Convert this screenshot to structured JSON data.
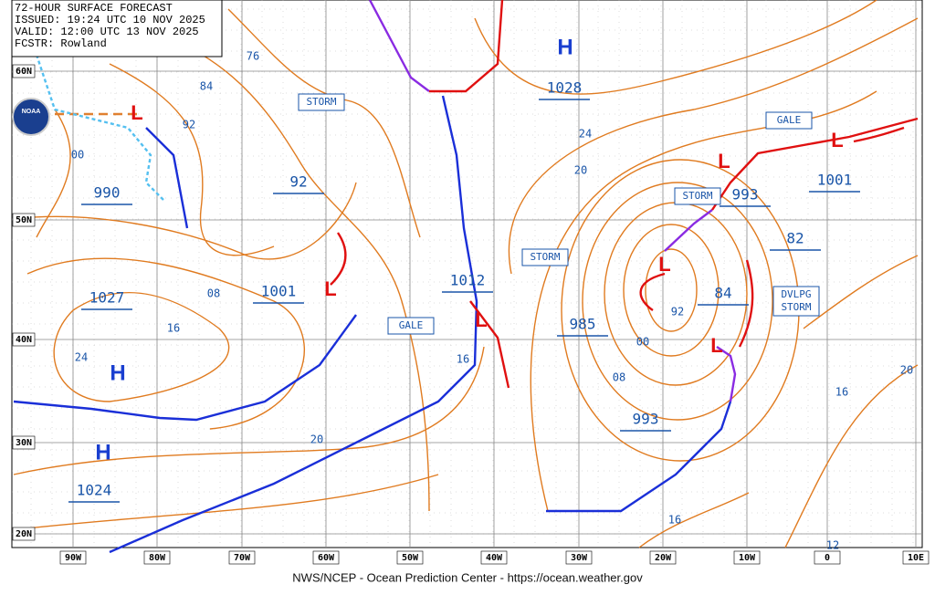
{
  "header": {
    "lines": [
      "72-HOUR SURFACE FORECAST",
      "ISSUED: 19:24 UTC 10 NOV 2025",
      "VALID: 12:00 UTC 13 NOV 2025",
      "FCSTR: Rowland"
    ]
  },
  "logo": "NOAA",
  "latitude_labels": [
    "60N",
    "50N",
    "40N",
    "30N",
    "20N"
  ],
  "longitude_labels": [
    "90W",
    "80W",
    "70W",
    "60W",
    "50W",
    "40W",
    "30W",
    "20W",
    "10W",
    "0",
    "10E"
  ],
  "highs": [
    "H",
    "H",
    "H"
  ],
  "lows": [
    "L",
    "L",
    "L",
    "L",
    "L",
    "L",
    "L"
  ],
  "pressure_labels": [
    "1028",
    "990",
    "1027",
    "1024",
    "1001",
    "1012",
    "985",
    "993",
    "993",
    "1001",
    "92",
    "84",
    "82"
  ],
  "isobar_labels": [
    "76",
    "84",
    "92",
    "00",
    "08",
    "16",
    "24",
    "20",
    "16",
    "24",
    "20",
    "08",
    "00",
    "92",
    "16",
    "12",
    "20",
    "16"
  ],
  "warnings": [
    "STORM",
    "STORM",
    "STORM",
    "GALE",
    "GALE",
    "DVLPG STORM"
  ],
  "footer": "NWS/NCEP - Ocean Prediction Center - https://ocean.weather.gov"
}
